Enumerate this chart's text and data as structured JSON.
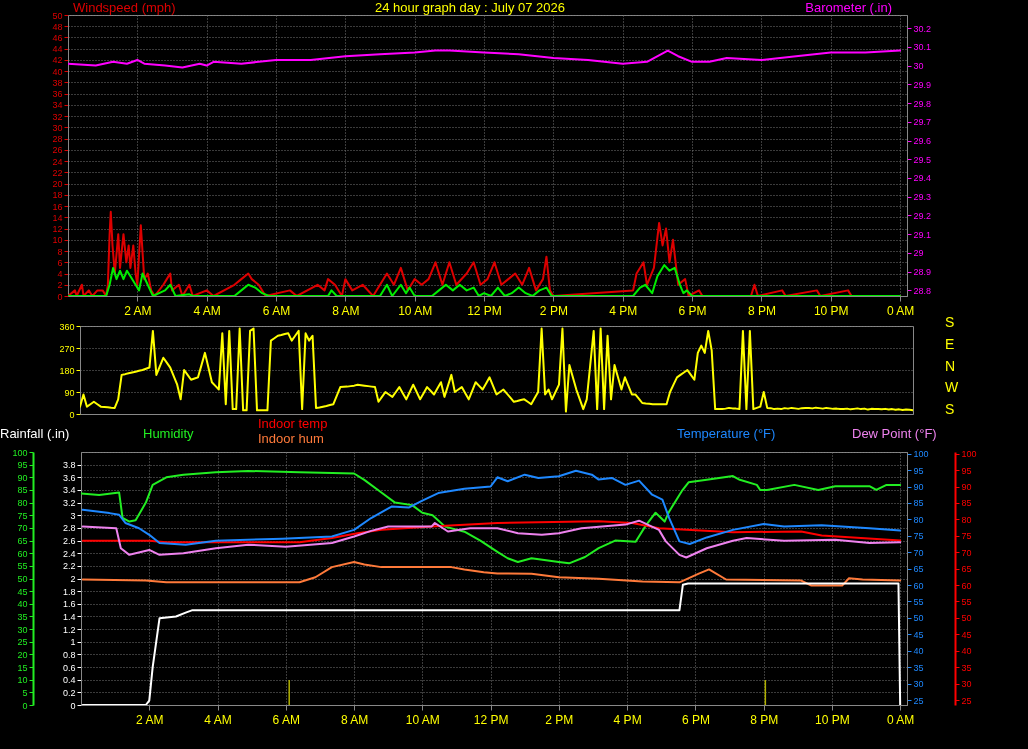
{
  "chart_data": [
    {
      "type": "line",
      "title": "24 hour graph day : July 07 2026",
      "ylabel": "Windspeed (mph)",
      "y2label": "Barometer (.in)",
      "xlim": [
        "2026-07-07T00:00",
        "2026-07-08T00:12"
      ],
      "xticks": [
        {
          "value": "2026-07-07T02:00",
          "label": "2 AM"
        },
        {
          "value": "2026-07-07T04:00",
          "label": "4 AM"
        },
        {
          "value": "2026-07-07T06:00",
          "label": "6 AM"
        },
        {
          "value": "2026-07-07T08:00",
          "label": "8 AM"
        },
        {
          "value": "2026-07-07T10:00",
          "label": "10 AM"
        },
        {
          "value": "2026-07-07T12:00",
          "label": "12 PM"
        },
        {
          "value": "2026-07-07T14:00",
          "label": "2 PM"
        },
        {
          "value": "2026-07-07T16:00",
          "label": "4 PM"
        },
        {
          "value": "2026-07-07T18:00",
          "label": "6 PM"
        },
        {
          "value": "2026-07-07T20:00",
          "label": "8 PM"
        },
        {
          "value": "2026-07-07T22:00",
          "label": "10 PM"
        },
        {
          "value": "2026-07-08T00:00",
          "label": "0 AM"
        }
      ],
      "ylim": [
        0,
        50
      ],
      "yticks": [
        0,
        2,
        4,
        6,
        8,
        10,
        12,
        14,
        16,
        18,
        20,
        22,
        24,
        26,
        28,
        30,
        32,
        34,
        36,
        38,
        40,
        42,
        44,
        46,
        48,
        50
      ],
      "y2lim": [
        28.77,
        30.27
      ],
      "y2ticks": [
        28.8,
        28.9,
        29,
        29.1,
        29.2,
        29.3,
        29.4,
        29.5,
        29.6,
        29.7,
        29.8,
        29.9,
        30,
        30.1,
        30.2
      ],
      "grid": true,
      "series": [
        {
          "color": "#dd0000",
          "x": [
            "2026-07-07T00:00",
            "2026-07-07T00:12",
            "2026-07-07T00:15",
            "2026-07-07T00:24",
            "2026-07-07T00:27",
            "2026-07-07T00:36",
            "2026-07-07T00:42",
            "2026-07-07T00:51",
            "2026-07-07T01:00",
            "2026-07-07T01:06",
            "2026-07-07T01:09",
            "2026-07-07T01:12",
            "2026-07-07T01:14",
            "2026-07-07T01:17",
            "2026-07-07T01:21",
            "2026-07-07T01:27",
            "2026-07-07T01:30",
            "2026-07-07T01:36",
            "2026-07-07T01:41",
            "2026-07-07T01:45",
            "2026-07-07T01:48",
            "2026-07-07T01:53",
            "2026-07-07T01:57",
            "2026-07-07T02:00",
            "2026-07-07T02:06",
            "2026-07-07T02:12",
            "2026-07-07T02:18",
            "2026-07-07T02:24",
            "2026-07-07T02:30",
            "2026-07-07T02:45",
            "2026-07-07T02:51",
            "2026-07-07T02:57",
            "2026-07-07T03:00",
            "2026-07-07T03:12",
            "2026-07-07T03:18",
            "2026-07-07T03:30",
            "2026-07-07T03:36",
            "2026-07-07T04:00",
            "2026-07-07T04:12",
            "2026-07-07T04:48",
            "2026-07-07T05:00",
            "2026-07-07T05:12",
            "2026-07-07T05:18",
            "2026-07-07T05:30",
            "2026-07-07T05:42",
            "2026-07-07T06:24",
            "2026-07-07T06:36",
            "2026-07-07T07:12",
            "2026-07-07T07:24",
            "2026-07-07T07:30",
            "2026-07-07T07:42",
            "2026-07-07T07:54",
            "2026-07-07T08:00",
            "2026-07-07T08:12",
            "2026-07-07T08:30",
            "2026-07-07T08:48",
            "2026-07-07T09:00",
            "2026-07-07T09:12",
            "2026-07-07T09:24",
            "2026-07-07T09:36",
            "2026-07-07T09:48",
            "2026-07-07T10:00",
            "2026-07-07T10:12",
            "2026-07-07T10:24",
            "2026-07-07T10:36",
            "2026-07-07T10:48",
            "2026-07-07T11:00",
            "2026-07-07T11:12",
            "2026-07-07T11:30",
            "2026-07-07T11:42",
            "2026-07-07T11:54",
            "2026-07-07T12:06",
            "2026-07-07T12:18",
            "2026-07-07T12:30",
            "2026-07-07T12:42",
            "2026-07-07T12:54",
            "2026-07-07T13:06",
            "2026-07-07T13:18",
            "2026-07-07T13:30",
            "2026-07-07T13:42",
            "2026-07-07T13:48",
            "2026-07-07T13:54",
            "2026-07-07T14:00",
            "2026-07-07T16:18",
            "2026-07-07T16:24",
            "2026-07-07T16:36",
            "2026-07-07T16:42",
            "2026-07-07T16:54",
            "2026-07-07T17:03",
            "2026-07-07T17:09",
            "2026-07-07T17:15",
            "2026-07-07T17:21",
            "2026-07-07T17:27",
            "2026-07-07T17:36",
            "2026-07-07T17:48",
            "2026-07-07T17:54",
            "2026-07-07T18:12",
            "2026-07-07T18:18",
            "2026-07-07T19:42",
            "2026-07-07T19:48",
            "2026-07-07T19:54",
            "2026-07-07T20:36",
            "2026-07-07T20:42",
            "2026-07-07T21:36",
            "2026-07-07T21:42",
            "2026-07-07T22:30",
            "2026-07-07T22:36",
            "2026-07-08T00:00"
          ],
          "values": [
            0,
            1,
            0,
            2,
            0,
            1,
            0,
            1,
            1,
            0,
            2,
            11,
            15,
            9,
            4,
            11,
            5,
            11,
            6,
            9,
            5,
            9,
            4,
            2,
            12.6,
            3,
            4,
            1,
            0,
            2,
            3,
            4,
            1,
            2,
            0,
            2,
            0,
            1,
            0,
            2,
            3,
            4,
            3,
            2,
            0,
            1,
            0,
            2,
            1,
            3,
            2,
            0,
            3,
            1,
            2,
            0,
            2,
            4,
            2,
            5,
            1,
            3,
            2,
            3,
            6,
            2,
            6,
            2,
            4,
            6,
            2,
            3,
            6,
            2,
            3,
            4,
            2,
            5,
            1,
            3,
            7,
            1,
            0,
            1,
            4,
            6,
            2,
            5,
            13,
            9,
            12,
            6,
            10,
            2,
            3,
            0,
            1,
            0,
            0,
            2,
            0,
            1,
            0,
            1,
            0,
            1,
            0,
            0
          ]
        },
        {
          "color": "#00ee00",
          "x": [
            "2026-07-07T00:00",
            "2026-07-07T01:06",
            "2026-07-07T01:12",
            "2026-07-07T01:18",
            "2026-07-07T01:24",
            "2026-07-07T01:30",
            "2026-07-07T01:36",
            "2026-07-07T01:42",
            "2026-07-07T01:48",
            "2026-07-07T01:57",
            "2026-07-07T02:03",
            "2026-07-07T02:09",
            "2026-07-07T02:18",
            "2026-07-07T02:27",
            "2026-07-07T02:48",
            "2026-07-07T02:57",
            "2026-07-07T03:06",
            "2026-07-07T03:30",
            "2026-07-07T03:36",
            "2026-07-07T04:48",
            "2026-07-07T05:00",
            "2026-07-07T05:12",
            "2026-07-07T05:24",
            "2026-07-07T05:36",
            "2026-07-07T05:48",
            "2026-07-07T07:30",
            "2026-07-07T07:36",
            "2026-07-07T07:45",
            "2026-07-07T09:00",
            "2026-07-07T09:12",
            "2026-07-07T09:21",
            "2026-07-07T09:36",
            "2026-07-07T09:45",
            "2026-07-07T09:51",
            "2026-07-07T10:00",
            "2026-07-07T10:30",
            "2026-07-07T10:42",
            "2026-07-07T10:54",
            "2026-07-07T11:06",
            "2026-07-07T11:18",
            "2026-07-07T11:30",
            "2026-07-07T11:42",
            "2026-07-07T11:51",
            "2026-07-07T12:00",
            "2026-07-07T12:12",
            "2026-07-07T12:24",
            "2026-07-07T12:36",
            "2026-07-07T12:48",
            "2026-07-07T13:00",
            "2026-07-07T13:12",
            "2026-07-07T13:24",
            "2026-07-07T13:36",
            "2026-07-07T13:48",
            "2026-07-07T13:57",
            "2026-07-07T16:18",
            "2026-07-07T16:30",
            "2026-07-07T16:39",
            "2026-07-07T16:51",
            "2026-07-07T17:00",
            "2026-07-07T17:12",
            "2026-07-07T17:21",
            "2026-07-07T17:30",
            "2026-07-07T17:39",
            "2026-07-07T17:45",
            "2026-07-07T17:51",
            "2026-07-07T18:00",
            "2026-07-08T00:00"
          ],
          "values": [
            0,
            0,
            2,
            5,
            3,
            4.5,
            3,
            4.5,
            3.5,
            2,
            1,
            4,
            2,
            0,
            1,
            2,
            0,
            0.3,
            0,
            0,
            1,
            2,
            1.5,
            0.5,
            0,
            0,
            1,
            0,
            0,
            2,
            0,
            2,
            0.5,
            1.5,
            0,
            0,
            1,
            2,
            1,
            2,
            1,
            1.5,
            0,
            0.5,
            0,
            1.5,
            0,
            0.5,
            1.5,
            0.5,
            0,
            1,
            1.5,
            0,
            0,
            1.5,
            2,
            0.5,
            3.5,
            5.5,
            4.5,
            5,
            2,
            0.5,
            1,
            0,
            0
          ]
        },
        {
          "color": "#ff00ff",
          "axis": "y2",
          "x": [
            "2026-07-07T00:00",
            "2026-07-07T00:48",
            "2026-07-07T01:18",
            "2026-07-07T01:42",
            "2026-07-07T02:00",
            "2026-07-07T02:12",
            "2026-07-07T02:48",
            "2026-07-07T03:18",
            "2026-07-07T03:48",
            "2026-07-07T04:00",
            "2026-07-07T04:12",
            "2026-07-07T05:00",
            "2026-07-07T06:00",
            "2026-07-07T07:00",
            "2026-07-07T08:00",
            "2026-07-07T09:00",
            "2026-07-07T10:00",
            "2026-07-07T10:36",
            "2026-07-07T11:00",
            "2026-07-07T12:00",
            "2026-07-07T13:00",
            "2026-07-07T14:00",
            "2026-07-07T15:00",
            "2026-07-07T16:00",
            "2026-07-07T16:42",
            "2026-07-07T17:06",
            "2026-07-07T17:18",
            "2026-07-07T17:36",
            "2026-07-07T18:00",
            "2026-07-07T18:30",
            "2026-07-07T19:00",
            "2026-07-07T20:00",
            "2026-07-07T21:00",
            "2026-07-07T22:00",
            "2026-07-07T23:00",
            "2026-07-08T00:00"
          ],
          "values": [
            30.01,
            30.0,
            30.02,
            30.01,
            30.03,
            30.01,
            30.0,
            29.99,
            30.01,
            30.0,
            30.02,
            30.01,
            30.03,
            30.03,
            30.05,
            30.06,
            30.07,
            30.08,
            30.08,
            30.07,
            30.06,
            30.04,
            30.03,
            30.01,
            30.02,
            30.06,
            30.08,
            30.05,
            30.02,
            30.02,
            30.04,
            30.03,
            30.05,
            30.07,
            30.07,
            30.08
          ]
        }
      ]
    },
    {
      "type": "line",
      "categories": [
        null,
        null,
        null,
        null,
        null,
        null,
        null,
        null,
        null,
        null,
        null,
        null,
        null,
        null,
        null,
        null,
        null,
        null,
        null,
        null,
        null,
        null,
        null,
        null,
        null,
        null,
        null,
        null,
        null,
        null,
        null,
        null,
        null,
        null,
        null,
        null,
        null,
        null,
        null,
        null,
        null,
        null,
        null,
        null,
        null,
        null,
        null,
        null,
        null,
        null,
        null,
        null,
        null,
        null,
        null,
        null,
        null,
        null,
        null,
        null,
        null,
        null,
        null,
        null,
        null,
        null,
        null,
        null,
        null,
        null,
        null,
        null,
        null,
        null,
        null,
        null,
        null,
        null,
        null,
        null,
        null,
        null,
        null,
        null,
        null,
        null,
        null,
        null,
        null,
        null,
        null,
        null,
        null,
        null,
        null,
        null,
        null,
        null,
        null,
        null,
        null,
        null,
        null,
        null,
        null,
        null,
        null,
        null,
        null,
        null,
        null,
        null,
        null,
        null,
        null,
        null,
        null,
        null,
        null,
        null,
        null,
        null,
        null,
        null,
        null,
        null,
        null,
        null,
        null,
        null,
        null,
        null,
        null,
        null,
        null,
        null,
        null,
        null,
        null,
        null,
        null,
        null,
        null,
        null,
        null,
        null,
        null,
        null,
        null,
        null,
        null,
        null,
        null,
        null,
        null,
        null,
        null,
        null,
        null,
        null,
        null,
        null,
        null,
        null,
        null,
        null,
        null,
        null,
        null,
        null,
        null,
        null,
        null,
        null,
        null,
        null,
        null,
        null,
        null,
        null,
        null,
        null,
        null,
        null,
        null,
        null,
        null,
        null,
        null,
        null,
        null,
        null,
        null,
        null,
        null,
        null,
        null,
        null,
        null,
        null,
        null,
        null,
        null,
        null,
        null,
        null,
        null,
        null,
        null,
        null,
        null,
        null,
        null,
        null,
        null,
        null,
        null,
        null,
        null,
        null,
        null,
        null,
        null,
        null,
        null,
        null,
        null,
        null,
        null,
        null,
        null,
        null,
        null,
        null,
        null,
        null,
        null,
        null,
        null,
        null,
        null
      ],
      "ylim": [
        0,
        360
      ],
      "yticks": [
        0,
        90,
        180,
        270,
        360
      ],
      "tick_labels": "y",
      "grid": "y",
      "annotations": [
        "S",
        "E",
        "N",
        "W",
        "S"
      ],
      "series": [
        {
          "color": "#ffff00",
          "values": [
            30,
            80,
            30,
            40,
            50,
            40,
            30,
            29,
            28,
            26,
            25,
            60,
            160,
            163,
            167,
            170,
            173,
            177,
            180,
            185,
            190,
            340,
            160,
            195,
            230,
            210,
            190,
            155,
            120,
            60,
            180,
            160,
            140,
            145,
            150,
            200,
            250,
            190,
            130,
            115,
            100,
            330,
            40,
            340,
            20,
            20,
            350,
            15,
            15,
            340,
            350,
            15,
            15,
            15,
            15,
            300,
            310,
            320,
            323,
            327,
            330,
            300,
            320,
            340,
            20,
            330,
            300,
            320,
            25,
            27,
            30,
            33,
            37,
            40,
            75,
            110,
            111,
            112,
            114,
            116,
            120,
            118,
            116,
            114,
            112,
            110,
            50,
            70,
            90,
            80,
            70,
            90,
            110,
            85,
            60,
            90,
            120,
            90,
            60,
            85,
            110,
            95,
            80,
            105,
            130,
            70,
            115,
            160,
            90,
            100,
            110,
            85,
            60,
            95,
            130,
            115,
            100,
            125,
            150,
            115,
            80,
            90,
            100,
            83,
            67,
            50,
            53,
            57,
            60,
            50,
            40,
            65,
            90,
            350,
            80,
            100,
            60,
            90,
            120,
            350,
            10,
            200,
            150,
            100,
            60,
            20,
            60,
            200,
            340,
            20,
            350,
            20,
            320,
            60,
            200,
            150,
            100,
            150,
            115,
            80,
            80,
            63,
            45,
            43,
            42,
            40,
            40,
            40,
            40,
            40,
            90,
            120,
            150,
            160,
            170,
            180,
            160,
            140,
            250,
            280,
            250,
            340,
            260,
            20,
            20,
            20,
            22,
            25,
            23,
            22,
            20,
            340,
            20,
            340,
            20,
            25,
            30,
            90,
            25,
            24,
            20,
            22,
            20,
            24,
            22,
            25,
            23,
            21,
            24,
            25,
            25,
            23,
            26,
            24,
            22,
            25,
            23,
            21,
            22,
            20,
            20,
            22,
            19,
            21,
            23,
            20,
            22,
            18,
            21,
            20,
            20,
            19,
            21,
            18,
            20,
            17,
            19,
            16,
            18,
            17,
            15
          ]
        }
      ]
    },
    {
      "type": "line",
      "xlim": [
        "2026-07-07T00:00",
        "2026-07-08T00:12"
      ],
      "xticks": [
        {
          "value": "2026-07-07T02:00",
          "label": "2 AM"
        },
        {
          "value": "2026-07-07T04:00",
          "label": "4 AM"
        },
        {
          "value": "2026-07-07T06:00",
          "label": "6 AM"
        },
        {
          "value": "2026-07-07T08:00",
          "label": "8 AM"
        },
        {
          "value": "2026-07-07T10:00",
          "label": "10 AM"
        },
        {
          "value": "2026-07-07T12:00",
          "label": "12 PM"
        },
        {
          "value": "2026-07-07T14:00",
          "label": "2 PM"
        },
        {
          "value": "2026-07-07T16:00",
          "label": "4 PM"
        },
        {
          "value": "2026-07-07T18:00",
          "label": "6 PM"
        },
        {
          "value": "2026-07-07T20:00",
          "label": "8 PM"
        },
        {
          "value": "2026-07-07T22:00",
          "label": "10 PM"
        },
        {
          "value": "2026-07-08T00:00",
          "label": "0 AM"
        }
      ],
      "ylim": [
        0,
        100
      ],
      "yticks": [
        0,
        5,
        10,
        15,
        20,
        25,
        30,
        35,
        40,
        45,
        50,
        55,
        60,
        65,
        70,
        75,
        80,
        85,
        90,
        95,
        100
      ],
      "y2lim": [
        0,
        4
      ],
      "y2ticks": [
        0,
        0.2,
        0.4,
        0.6,
        0.8,
        1,
        1.2,
        1.4,
        1.6,
        1.8,
        2,
        2.2,
        2.4,
        2.6,
        2.8,
        3,
        3.2,
        3.4,
        3.6,
        3.8
      ],
      "y3lim": [
        23.5,
        100.5
      ],
      "y3ticks": [
        25,
        30,
        35,
        40,
        45,
        50,
        55,
        60,
        65,
        70,
        75,
        80,
        85,
        90,
        95,
        100
      ],
      "annotations": [
        "25",
        "30",
        "35",
        "40",
        "45",
        "50",
        "55",
        "60",
        "65",
        "70",
        "75",
        "80",
        "85",
        "90",
        "95",
        "100"
      ],
      "grid": true,
      "ref_lines": [
        {
          "axis": "x",
          "value": "2026-07-07T06:06",
          "color": "#b0b000"
        },
        {
          "axis": "x",
          "value": "2026-07-07T20:03",
          "color": "#b0b000"
        }
      ],
      "series": [
        {
          "name": "Rainfall (.in)",
          "color": "#ffffff",
          "axis": "y2",
          "x": [
            "2026-07-07T00:03",
            "2026-07-07T01:54",
            "2026-07-07T02:00",
            "2026-07-07T02:06",
            "2026-07-07T02:18",
            "2026-07-07T02:47",
            "2026-07-07T03:04",
            "2026-07-07T03:16",
            "2026-07-07T17:26",
            "2026-07-07T17:32",
            "2026-07-07T17:38",
            "2026-07-07T17:47",
            "2026-07-07T23:57",
            "2026-07-08T00:00"
          ],
          "values": [
            0,
            0,
            0.07,
            0.6,
            1.37,
            1.4,
            1.46,
            1.5,
            1.5,
            1.5,
            1.9,
            1.92,
            1.92,
            0
          ]
        },
        {
          "name": "Humidity",
          "color": "#22ee22",
          "x": [
            "2026-07-07T00:00",
            "2026-07-07T00:32",
            "2026-07-07T01:07",
            "2026-07-07T01:13",
            "2026-07-07T01:25",
            "2026-07-07T01:36",
            "2026-07-07T01:54",
            "2026-07-07T02:06",
            "2026-07-07T02:30",
            "2026-07-07T03:00",
            "2026-07-07T03:57",
            "2026-07-07T04:54",
            "2026-07-07T06:24",
            "2026-07-07T08:00",
            "2026-07-07T08:18",
            "2026-07-07T08:48",
            "2026-07-07T09:12",
            "2026-07-07T09:42",
            "2026-07-07T10:00",
            "2026-07-07T10:18",
            "2026-07-07T10:40",
            "2026-07-07T11:14",
            "2026-07-07T11:42",
            "2026-07-07T12:12",
            "2026-07-07T12:30",
            "2026-07-07T12:48",
            "2026-07-07T13:12",
            "2026-07-07T14:00",
            "2026-07-07T14:18",
            "2026-07-07T14:46",
            "2026-07-07T15:10",
            "2026-07-07T15:39",
            "2026-07-07T16:15",
            "2026-07-07T16:33",
            "2026-07-07T16:50",
            "2026-07-07T17:06",
            "2026-07-07T17:14",
            "2026-07-07T17:36",
            "2026-07-07T17:48",
            "2026-07-07T18:20",
            "2026-07-07T19:06",
            "2026-07-07T19:18",
            "2026-07-07T19:48",
            "2026-07-07T19:54",
            "2026-07-07T20:06",
            "2026-07-07T20:54",
            "2026-07-07T21:36",
            "2026-07-07T22:06",
            "2026-07-07T23:06",
            "2026-07-07T23:18",
            "2026-07-07T23:36",
            "2026-07-08T00:00"
          ],
          "values": [
            83.6,
            83,
            84,
            74,
            72.5,
            73,
            80,
            87,
            90,
            91,
            92,
            92.5,
            92,
            91.5,
            89,
            84,
            80,
            79,
            76,
            75,
            70.5,
            68.5,
            65,
            60.5,
            58,
            56.5,
            58,
            56.5,
            56,
            58.5,
            62,
            65,
            64.5,
            71,
            76,
            72.5,
            76.5,
            84.5,
            88,
            89,
            90.5,
            89,
            87,
            85,
            85,
            87,
            85,
            86.5,
            86.5,
            85,
            87,
            87
          ]
        },
        {
          "name": "Indoor temp",
          "color": "#ff0000",
          "axis": "y3",
          "x": [
            "2026-07-07T00:03",
            "2026-07-07T02:00",
            "2026-07-07T02:30",
            "2026-07-07T06:24",
            "2026-07-07T07:21",
            "2026-07-07T08:06",
            "2026-07-07T08:48",
            "2026-07-07T10:16",
            "2026-07-07T12:12",
            "2026-07-07T15:10",
            "2026-07-07T16:09",
            "2026-07-07T16:56",
            "2026-07-07T19:06",
            "2026-07-07T21:06",
            "2026-07-07T21:42",
            "2026-07-08T00:00"
          ],
          "values": [
            73.5,
            73.5,
            73,
            73,
            74.3,
            75.8,
            76.8,
            77.8,
            78.9,
            79.4,
            78.9,
            77.3,
            76.1,
            76.3,
            75.1,
            73.6
          ]
        },
        {
          "name": "Indoor hum",
          "color": "#ff7a3a",
          "x": [
            "2026-07-07T00:03",
            "2026-07-07T01:54",
            "2026-07-07T02:30",
            "2026-07-07T06:24",
            "2026-07-07T06:52",
            "2026-07-07T07:21",
            "2026-07-07T08:00",
            "2026-07-07T08:18",
            "2026-07-07T08:48",
            "2026-07-07T10:51",
            "2026-07-07T11:14",
            "2026-07-07T11:48",
            "2026-07-07T12:12",
            "2026-07-07T13:12",
            "2026-07-07T14:00",
            "2026-07-07T15:10",
            "2026-07-07T16:27",
            "2026-07-07T17:32",
            "2026-07-07T18:06",
            "2026-07-07T18:24",
            "2026-07-07T18:54",
            "2026-07-07T21:06",
            "2026-07-07T21:24",
            "2026-07-07T22:18",
            "2026-07-07T22:30",
            "2026-07-07T22:54",
            "2026-07-08T00:00"
          ],
          "values": [
            49.6,
            49.2,
            48.5,
            48.5,
            50.5,
            54.5,
            56.5,
            55.5,
            54.5,
            54.5,
            53.6,
            52.5,
            52,
            51.9,
            50.5,
            49.9,
            48.8,
            48.5,
            51.9,
            53.6,
            49.6,
            49.2,
            47.2,
            47.2,
            50.1,
            49.6,
            49.2
          ]
        },
        {
          "name": "Temperature (°F)",
          "color": "#1e88ff",
          "axis": "y3",
          "x": [
            "2026-07-07T00:03",
            "2026-07-07T00:50",
            "2026-07-07T01:07",
            "2026-07-07T01:18",
            "2026-07-07T01:42",
            "2026-07-07T02:00",
            "2026-07-07T02:18",
            "2026-07-07T03:04",
            "2026-07-07T03:57",
            "2026-07-07T05:54",
            "2026-07-07T07:21",
            "2026-07-07T08:00",
            "2026-07-07T08:30",
            "2026-07-07T09:06",
            "2026-07-07T09:36",
            "2026-07-07T10:00",
            "2026-07-07T10:28",
            "2026-07-07T11:14",
            "2026-07-07T12:00",
            "2026-07-07T12:12",
            "2026-07-07T12:30",
            "2026-07-07T13:00",
            "2026-07-07T13:24",
            "2026-07-07T14:00",
            "2026-07-07T14:30",
            "2026-07-07T14:58",
            "2026-07-07T15:10",
            "2026-07-07T15:33",
            "2026-07-07T15:57",
            "2026-07-07T16:21",
            "2026-07-07T16:44",
            "2026-07-07T17:02",
            "2026-07-07T17:14",
            "2026-07-07T17:32",
            "2026-07-07T17:50",
            "2026-07-07T18:20",
            "2026-07-07T19:06",
            "2026-07-07T20:00",
            "2026-07-07T20:36",
            "2026-07-07T21:42",
            "2026-07-07T23:06",
            "2026-07-08T00:00"
          ],
          "values": [
            82.9,
            81.9,
            81.4,
            78.9,
            77.3,
            75.3,
            72.8,
            72.3,
            73.5,
            74.1,
            74.8,
            76.8,
            80.4,
            83.9,
            83.6,
            85.7,
            88,
            89.3,
            90,
            92.8,
            91.6,
            93.6,
            92.6,
            93.1,
            94.8,
            93.6,
            92.1,
            92.6,
            90.5,
            91.8,
            87.5,
            86,
            80.4,
            73.3,
            72.5,
            74.5,
            76.8,
            78.6,
            77.8,
            78.2,
            77.3,
            76.6
          ]
        },
        {
          "name": "Dew Point (°F)",
          "color": "#ee82ee",
          "axis": "y3",
          "x": [
            "2026-07-07T00:03",
            "2026-07-07T01:02",
            "2026-07-07T01:10",
            "2026-07-07T01:25",
            "2026-07-07T02:00",
            "2026-07-07T02:18",
            "2026-07-07T03:00",
            "2026-07-07T03:57",
            "2026-07-07T04:54",
            "2026-07-07T06:00",
            "2026-07-07T07:21",
            "2026-07-07T08:00",
            "2026-07-07T08:30",
            "2026-07-07T09:00",
            "2026-07-07T10:16",
            "2026-07-07T10:22",
            "2026-07-07T10:45",
            "2026-07-07T11:24",
            "2026-07-07T12:12",
            "2026-07-07T12:48",
            "2026-07-07T13:30",
            "2026-07-07T14:00",
            "2026-07-07T14:40",
            "2026-07-07T15:57",
            "2026-07-07T16:21",
            "2026-07-07T16:56",
            "2026-07-07T17:08",
            "2026-07-07T17:32",
            "2026-07-07T17:44",
            "2026-07-07T18:20",
            "2026-07-07T19:06",
            "2026-07-07T19:30",
            "2026-07-07T20:36",
            "2026-07-07T22:06",
            "2026-07-07T23:06",
            "2026-07-08T00:00"
          ],
          "values": [
            77.8,
            77.3,
            71.2,
            69.2,
            70.7,
            69.2,
            69.7,
            71.2,
            72.3,
            71.7,
            72.8,
            74.8,
            76.5,
            77.8,
            77.8,
            78.9,
            76.3,
            77.3,
            77.3,
            75.8,
            75.3,
            75.8,
            77.3,
            78.4,
            79.6,
            76.8,
            73.3,
            69.2,
            68.4,
            71.2,
            73.5,
            74.3,
            73.5,
            73.8,
            72.8,
            73
          ]
        }
      ]
    }
  ]
}
